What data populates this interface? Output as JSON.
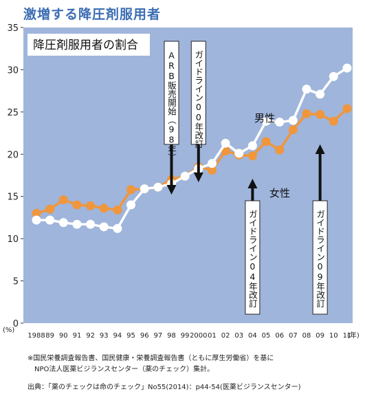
{
  "headline": "激増する降圧剤服用者",
  "notes": {
    "line1": "※国民栄養調査報告書、国民健康・栄養調査報告書（ともに厚生労働省）を基に",
    "line2": "NPO法人医薬ビジランスセンター（薬のチェック）集計。",
    "source": "出典：「薬のチェックは命のチェック」No55(2014)：p44-54(医薬ビジランスセンター)"
  },
  "colors": {
    "background": "#9fb5db",
    "male": "#ffffff",
    "female": "#f0963c",
    "arrow": "#111111"
  },
  "chart_data": {
    "type": "line",
    "title": "降圧剤服用者の割合",
    "ylabel": "(%)",
    "xlabel": "(年)",
    "ylim": [
      0,
      35
    ],
    "yticks": [
      0,
      5,
      10,
      15,
      20,
      25,
      30,
      35
    ],
    "grid": false,
    "x": [
      "1988",
      "89",
      "90",
      "91",
      "92",
      "93",
      "94",
      "95",
      "96",
      "97",
      "98",
      "99",
      "2000",
      "01",
      "02",
      "03",
      "04",
      "05",
      "06",
      "07",
      "08",
      "09",
      "10",
      "11"
    ],
    "series": [
      {
        "name": "男性",
        "color": "#ffffff",
        "values": [
          12.2,
          12.2,
          11.9,
          11.7,
          11.7,
          11.4,
          11.2,
          14.0,
          15.9,
          16.1,
          16.5,
          17.4,
          18.3,
          18.9,
          21.3,
          20.1,
          21.0,
          23.9,
          23.8,
          24.0,
          27.7,
          27.1,
          29.2,
          30.2
        ]
      },
      {
        "name": "女性",
        "color": "#f0963c",
        "values": [
          13.0,
          13.5,
          14.6,
          14.0,
          13.9,
          13.6,
          13.4,
          15.8,
          15.9,
          16.1,
          17.0,
          17.4,
          18.5,
          18.1,
          20.4,
          19.9,
          19.8,
          21.5,
          20.5,
          22.9,
          24.8,
          24.7,
          23.9,
          25.4
        ]
      }
    ],
    "annotations": [
      {
        "text": "ARB販売開始（98年）",
        "x": "98",
        "direction": "down"
      },
      {
        "text": "ガイドライン00年改訂",
        "x": "2000",
        "direction": "down"
      },
      {
        "text": "ガイドライン04年改訂",
        "x": "04",
        "direction": "up"
      },
      {
        "text": "ガイドライン09年改訂",
        "x": "09",
        "direction": "up"
      }
    ]
  }
}
